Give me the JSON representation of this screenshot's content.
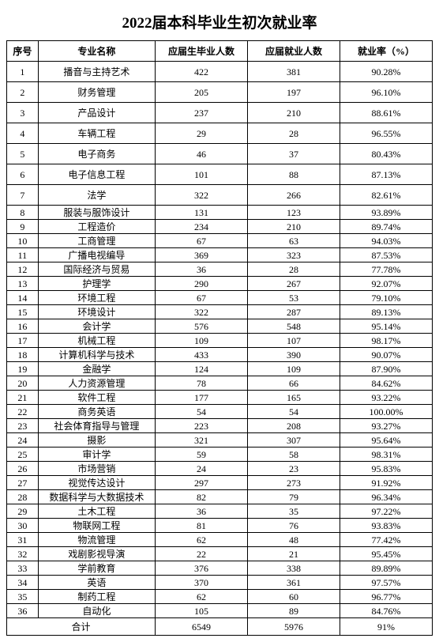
{
  "title": "2022届本科毕业生初次就业率",
  "headers": {
    "idx": "序号",
    "name": "专业名称",
    "grad": "应届生毕业人数",
    "emp": "应届就业人数",
    "rate": "就业率（%）"
  },
  "total_label": "合计",
  "total": {
    "grad": "6549",
    "emp": "5976",
    "rate": "91%"
  },
  "rows": [
    {
      "idx": "1",
      "name": "播音与主持艺术",
      "grad": "422",
      "emp": "381",
      "rate": "90.28%",
      "tall": true
    },
    {
      "idx": "2",
      "name": "财务管理",
      "grad": "205",
      "emp": "197",
      "rate": "96.10%",
      "tall": true
    },
    {
      "idx": "3",
      "name": "产品设计",
      "grad": "237",
      "emp": "210",
      "rate": "88.61%",
      "tall": true
    },
    {
      "idx": "4",
      "name": "车辆工程",
      "grad": "29",
      "emp": "28",
      "rate": "96.55%",
      "tall": true
    },
    {
      "idx": "5",
      "name": "电子商务",
      "grad": "46",
      "emp": "37",
      "rate": "80.43%",
      "tall": true
    },
    {
      "idx": "6",
      "name": "电子信息工程",
      "grad": "101",
      "emp": "88",
      "rate": "87.13%",
      "tall": true
    },
    {
      "idx": "7",
      "name": "法学",
      "grad": "322",
      "emp": "266",
      "rate": "82.61%",
      "tall": true
    },
    {
      "idx": "8",
      "name": "服装与服饰设计",
      "grad": "131",
      "emp": "123",
      "rate": "93.89%",
      "tall": false
    },
    {
      "idx": "9",
      "name": "工程造价",
      "grad": "234",
      "emp": "210",
      "rate": "89.74%",
      "tall": false
    },
    {
      "idx": "10",
      "name": "工商管理",
      "grad": "67",
      "emp": "63",
      "rate": "94.03%",
      "tall": false
    },
    {
      "idx": "11",
      "name": "广播电视编导",
      "grad": "369",
      "emp": "323",
      "rate": "87.53%",
      "tall": false
    },
    {
      "idx": "12",
      "name": "国际经济与贸易",
      "grad": "36",
      "emp": "28",
      "rate": "77.78%",
      "tall": false
    },
    {
      "idx": "13",
      "name": "护理学",
      "grad": "290",
      "emp": "267",
      "rate": "92.07%",
      "tall": false
    },
    {
      "idx": "14",
      "name": "环境工程",
      "grad": "67",
      "emp": "53",
      "rate": "79.10%",
      "tall": false
    },
    {
      "idx": "15",
      "name": "环境设计",
      "grad": "322",
      "emp": "287",
      "rate": "89.13%",
      "tall": false
    },
    {
      "idx": "16",
      "name": "会计学",
      "grad": "576",
      "emp": "548",
      "rate": "95.14%",
      "tall": false
    },
    {
      "idx": "17",
      "name": "机械工程",
      "grad": "109",
      "emp": "107",
      "rate": "98.17%",
      "tall": false
    },
    {
      "idx": "18",
      "name": "计算机科学与技术",
      "grad": "433",
      "emp": "390",
      "rate": "90.07%",
      "tall": false
    },
    {
      "idx": "19",
      "name": "金融学",
      "grad": "124",
      "emp": "109",
      "rate": "87.90%",
      "tall": false
    },
    {
      "idx": "20",
      "name": "人力资源管理",
      "grad": "78",
      "emp": "66",
      "rate": "84.62%",
      "tall": false
    },
    {
      "idx": "21",
      "name": "软件工程",
      "grad": "177",
      "emp": "165",
      "rate": "93.22%",
      "tall": false
    },
    {
      "idx": "22",
      "name": "商务英语",
      "grad": "54",
      "emp": "54",
      "rate": "100.00%",
      "tall": false
    },
    {
      "idx": "23",
      "name": "社会体育指导与管理",
      "grad": "223",
      "emp": "208",
      "rate": "93.27%",
      "tall": false
    },
    {
      "idx": "24",
      "name": "摄影",
      "grad": "321",
      "emp": "307",
      "rate": "95.64%",
      "tall": false
    },
    {
      "idx": "25",
      "name": "审计学",
      "grad": "59",
      "emp": "58",
      "rate": "98.31%",
      "tall": false
    },
    {
      "idx": "26",
      "name": "市场营销",
      "grad": "24",
      "emp": "23",
      "rate": "95.83%",
      "tall": false
    },
    {
      "idx": "27",
      "name": "视觉传达设计",
      "grad": "297",
      "emp": "273",
      "rate": "91.92%",
      "tall": false
    },
    {
      "idx": "28",
      "name": "数据科学与大数据技术",
      "grad": "82",
      "emp": "79",
      "rate": "96.34%",
      "tall": false
    },
    {
      "idx": "29",
      "name": "土木工程",
      "grad": "36",
      "emp": "35",
      "rate": "97.22%",
      "tall": false
    },
    {
      "idx": "30",
      "name": "物联网工程",
      "grad": "81",
      "emp": "76",
      "rate": "93.83%",
      "tall": false
    },
    {
      "idx": "31",
      "name": "物流管理",
      "grad": "62",
      "emp": "48",
      "rate": "77.42%",
      "tall": false
    },
    {
      "idx": "32",
      "name": "戏剧影视导演",
      "grad": "22",
      "emp": "21",
      "rate": "95.45%",
      "tall": false
    },
    {
      "idx": "33",
      "name": "学前教育",
      "grad": "376",
      "emp": "338",
      "rate": "89.89%",
      "tall": false
    },
    {
      "idx": "34",
      "name": "英语",
      "grad": "370",
      "emp": "361",
      "rate": "97.57%",
      "tall": false
    },
    {
      "idx": "35",
      "name": "制药工程",
      "grad": "62",
      "emp": "60",
      "rate": "96.77%",
      "tall": false
    },
    {
      "idx": "36",
      "name": "自动化",
      "grad": "105",
      "emp": "89",
      "rate": "84.76%",
      "tall": false
    }
  ]
}
